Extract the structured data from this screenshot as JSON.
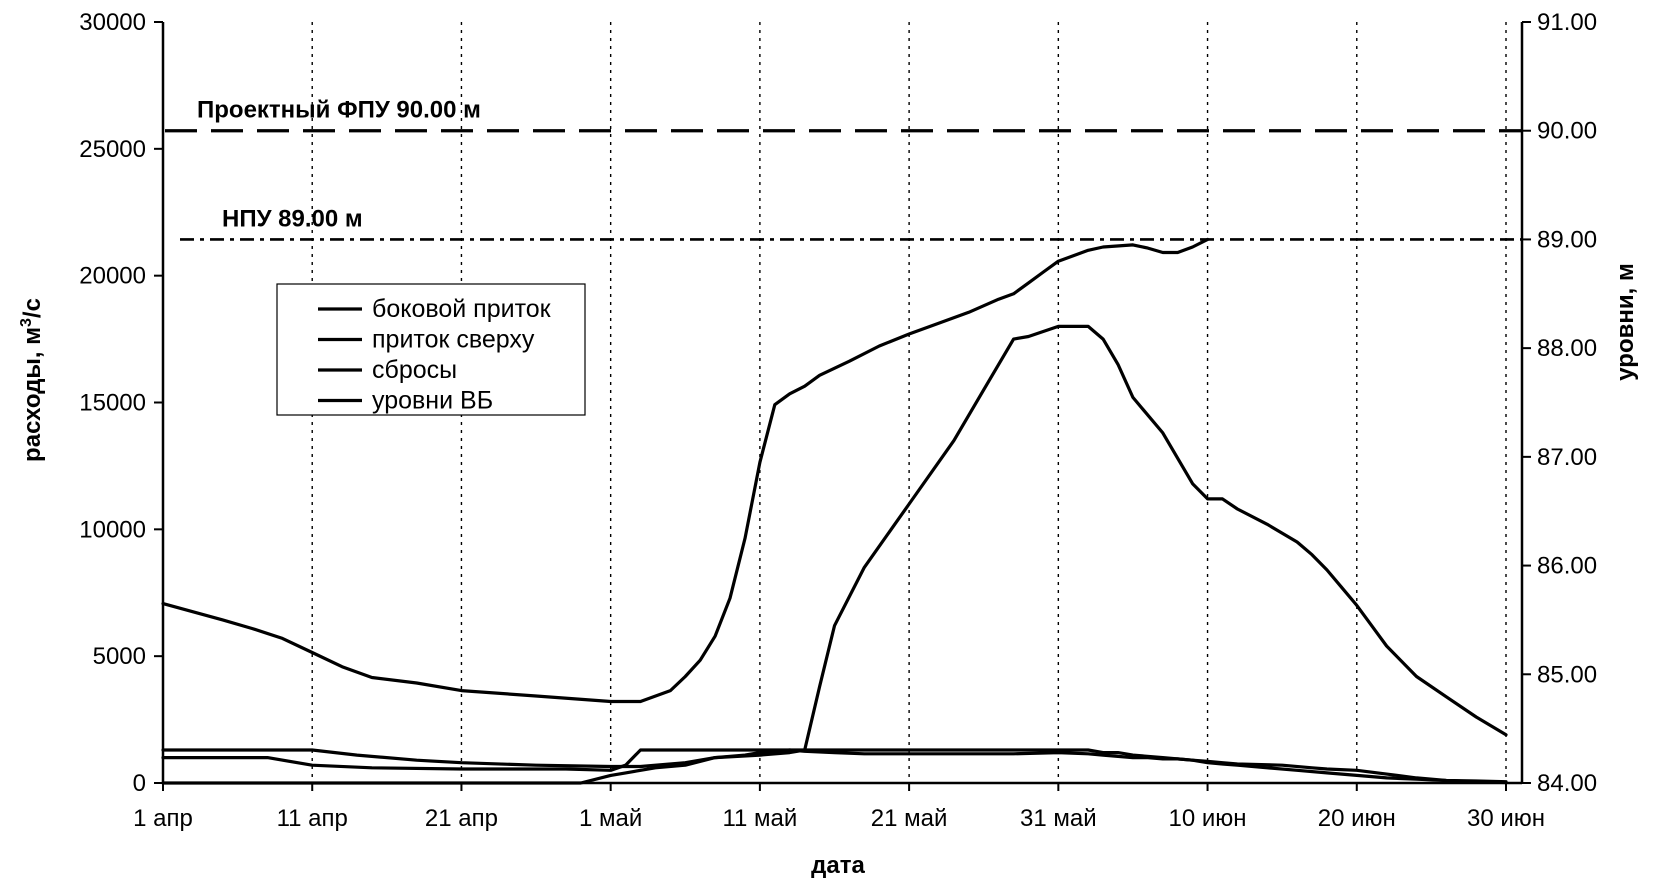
{
  "chart_data": {
    "type": "line",
    "xlabel": "дата",
    "ylabel": "расходы, м",
    "ylabel_sup": "3",
    "ylabel_tail": "/с",
    "y2label": "уровни, м",
    "x_ticks": [
      {
        "day": 0,
        "label": "1 апр"
      },
      {
        "day": 10,
        "label": "11 апр"
      },
      {
        "day": 20,
        "label": "21 апр"
      },
      {
        "day": 30,
        "label": "1 май"
      },
      {
        "day": 40,
        "label": "11 май"
      },
      {
        "day": 50,
        "label": "21 май"
      },
      {
        "day": 60,
        "label": "31 май"
      },
      {
        "day": 70,
        "label": "10 июн"
      },
      {
        "day": 80,
        "label": "20 июн"
      },
      {
        "day": 90,
        "label": "30 июн"
      }
    ],
    "xlim": [
      0,
      91
    ],
    "ylim": [
      0,
      30000
    ],
    "y_ticks": [
      0,
      5000,
      10000,
      15000,
      20000,
      25000,
      30000
    ],
    "y2lim": [
      84.0,
      91.0
    ],
    "y2_ticks": [
      "84.00",
      "85.00",
      "86.00",
      "87.00",
      "88.00",
      "89.00",
      "90.00",
      "91.00"
    ],
    "grid": "vertical dotted",
    "legend_position": "center-left",
    "reference_lines": [
      {
        "label": "Проектный ФПУ 90.00 м",
        "axis": "right",
        "value": 90.0,
        "style": "dashed"
      },
      {
        "label": "НПУ 89.00 м",
        "axis": "right",
        "value": 89.0,
        "style": "dash-dot"
      }
    ],
    "series": [
      {
        "name": "боковой приток",
        "axis": "left",
        "x": [
          0,
          4,
          7,
          10,
          13,
          17,
          20,
          25,
          30,
          32,
          35,
          37,
          39,
          40,
          41,
          42,
          43,
          45,
          47,
          50,
          53,
          55,
          57,
          60,
          62,
          63,
          64,
          65,
          66,
          67,
          68,
          69,
          70,
          71,
          72,
          75,
          77,
          78,
          80,
          82,
          84,
          86,
          88,
          90
        ],
        "y": [
          1300,
          1300,
          1300,
          1300,
          1100,
          900,
          800,
          700,
          650,
          650,
          800,
          1000,
          1100,
          1200,
          1250,
          1300,
          1250,
          1200,
          1150,
          1150,
          1150,
          1150,
          1150,
          1200,
          1150,
          1100,
          1050,
          1000,
          1000,
          950,
          950,
          900,
          850,
          800,
          750,
          700,
          600,
          550,
          500,
          350,
          200,
          100,
          50,
          20
        ]
      },
      {
        "name": "приток сверху",
        "axis": "left",
        "x": [
          0,
          4,
          7,
          10,
          14,
          20,
          27,
          30,
          31,
          32,
          35,
          37,
          40,
          43,
          45,
          48,
          50,
          53,
          55,
          57,
          59,
          60,
          62,
          63,
          64,
          65,
          67,
          69,
          70,
          71,
          72,
          74,
          76,
          78,
          80,
          82,
          84,
          86,
          88,
          90
        ],
        "y": [
          1000,
          1000,
          1000,
          700,
          600,
          550,
          550,
          500,
          700,
          1300,
          1300,
          1300,
          1300,
          1300,
          1300,
          1300,
          1300,
          1300,
          1300,
          1300,
          1300,
          1300,
          1300,
          1200,
          1200,
          1100,
          1000,
          900,
          800,
          750,
          700,
          600,
          500,
          400,
          300,
          200,
          150,
          100,
          80,
          50
        ]
      },
      {
        "name": "сбросы",
        "axis": "left",
        "x": [
          0,
          5,
          10,
          20,
          28,
          30,
          31,
          33,
          35,
          37,
          40,
          42,
          43,
          44,
          45,
          47,
          50,
          53,
          55,
          57,
          58,
          60,
          62,
          63,
          64,
          65,
          67,
          68,
          69,
          70,
          71,
          72,
          74,
          76,
          77,
          78,
          79,
          80,
          81,
          82,
          84,
          86,
          88,
          90
        ],
        "y": [
          0,
          0,
          0,
          0,
          0,
          300,
          400,
          600,
          700,
          1000,
          1100,
          1200,
          1300,
          3800,
          6200,
          8500,
          11000,
          13500,
          15500,
          17500,
          17600,
          18000,
          18000,
          17500,
          16500,
          15200,
          13800,
          12800,
          11800,
          11200,
          11200,
          10800,
          10200,
          9500,
          9000,
          8400,
          7700,
          7000,
          6200,
          5400,
          4200,
          3400,
          2600,
          1900
        ]
      },
      {
        "name": "уровни ВБ",
        "axis": "right",
        "x": [
          0,
          4,
          6,
          8,
          10,
          12,
          14,
          17,
          20,
          25,
          30,
          32,
          34,
          35,
          36,
          37,
          38,
          39,
          40,
          41,
          42,
          43,
          44,
          46,
          48,
          50,
          52,
          54,
          56,
          57,
          58,
          59,
          60,
          61,
          62,
          63,
          65,
          66,
          67,
          68,
          69,
          70
        ],
        "y": [
          85.65,
          85.5,
          85.42,
          85.33,
          85.2,
          85.07,
          84.97,
          84.92,
          84.85,
          84.8,
          84.75,
          84.75,
          84.85,
          84.98,
          85.13,
          85.35,
          85.7,
          86.25,
          86.95,
          87.48,
          87.58,
          87.65,
          87.75,
          87.88,
          88.02,
          88.13,
          88.23,
          88.33,
          88.45,
          88.5,
          88.6,
          88.7,
          88.8,
          88.85,
          88.9,
          88.93,
          88.95,
          88.92,
          88.88,
          88.88,
          88.93,
          89.0
        ]
      }
    ]
  }
}
